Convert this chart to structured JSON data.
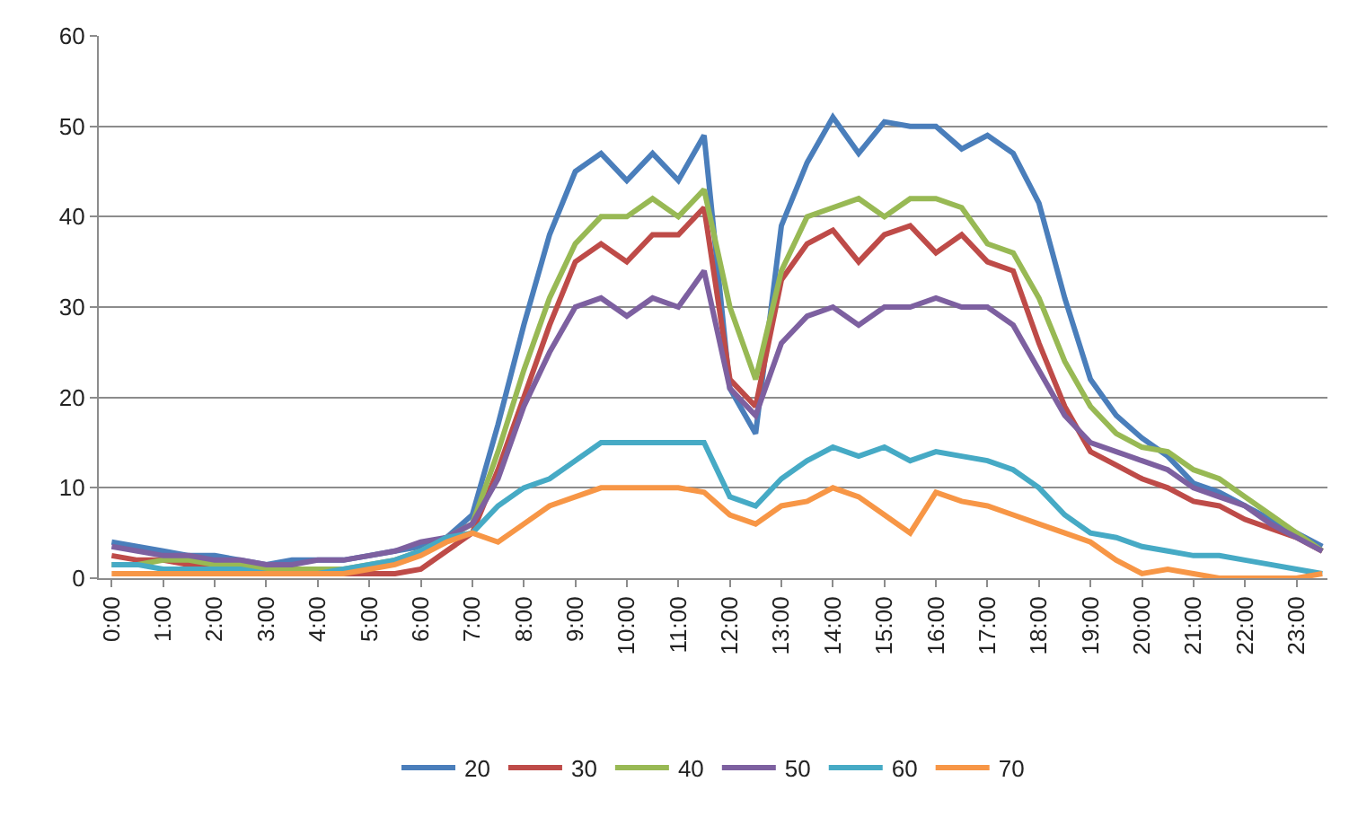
{
  "chart_data": {
    "type": "line",
    "x": [
      0,
      0.5,
      1,
      1.5,
      2,
      2.5,
      3,
      3.5,
      4,
      4.5,
      5,
      5.5,
      6,
      6.5,
      7,
      7.5,
      8,
      8.5,
      9,
      9.5,
      10,
      10.5,
      11,
      11.5,
      12,
      12.5,
      13,
      13.5,
      14,
      14.5,
      15,
      15.5,
      16,
      16.5,
      17,
      17.5,
      18,
      18.5,
      19,
      19.5,
      20,
      20.5,
      21,
      21.5,
      22,
      22.5,
      23,
      23.5
    ],
    "series": [
      {
        "name": "20",
        "color": "#4a7ebb",
        "values": [
          4,
          3.5,
          3,
          2.5,
          2.5,
          2,
          1.5,
          2,
          2,
          2,
          2.5,
          3,
          3.5,
          4.5,
          7,
          17,
          28,
          38,
          45,
          47,
          44,
          47,
          44,
          49,
          21,
          16,
          39,
          46,
          51,
          47,
          50.5,
          50,
          50,
          47.5,
          49,
          47,
          41.5,
          31,
          22,
          18,
          15.5,
          13.5,
          10.5,
          9.5,
          8,
          6.5,
          5,
          3.5
        ]
      },
      {
        "name": "30",
        "color": "#be4b48",
        "values": [
          2.5,
          2,
          2,
          1.5,
          1.5,
          1,
          1,
          1,
          0.5,
          0.5,
          0.5,
          0.5,
          1,
          3,
          5,
          12,
          20,
          28,
          35,
          37,
          35,
          38,
          38,
          41,
          22,
          19,
          33,
          37,
          38.5,
          35,
          38,
          39,
          36,
          38,
          35,
          34,
          26,
          19,
          14,
          12.5,
          11,
          10,
          8.5,
          8,
          6.5,
          5.5,
          4.5,
          3
        ]
      },
      {
        "name": "40",
        "color": "#98b954",
        "values": [
          1.5,
          1.5,
          2,
          2,
          1.5,
          1.5,
          1,
          1,
          1,
          1,
          1.5,
          2,
          3,
          4.5,
          6,
          14,
          23,
          31,
          37,
          40,
          40,
          42,
          40,
          43,
          30,
          22,
          34,
          40,
          41,
          42,
          40,
          42,
          42,
          41,
          37,
          36,
          31,
          24,
          19,
          16,
          14.5,
          14,
          12,
          11,
          9,
          7,
          5,
          3
        ]
      },
      {
        "name": "50",
        "color": "#7d60a0",
        "values": [
          3.5,
          3,
          2.5,
          2.5,
          2,
          2,
          1.5,
          1.5,
          2,
          2,
          2.5,
          3,
          4,
          4.5,
          6,
          11,
          19,
          25,
          30,
          31,
          29,
          31,
          30,
          34,
          21,
          18,
          26,
          29,
          30,
          28,
          30,
          30,
          31,
          30,
          30,
          28,
          23,
          18,
          15,
          14,
          13,
          12,
          10,
          9,
          8,
          6,
          4.5,
          3
        ]
      },
      {
        "name": "60",
        "color": "#46aac5",
        "values": [
          1.5,
          1.5,
          1,
          1,
          1,
          1,
          0.5,
          0.5,
          0.5,
          1,
          1.5,
          2,
          3,
          4.5,
          5,
          8,
          10,
          11,
          13,
          15,
          15,
          15,
          15,
          15,
          9,
          8,
          11,
          13,
          14.5,
          13.5,
          14.5,
          13,
          14,
          13.5,
          13,
          12,
          10,
          7,
          5,
          4.5,
          3.5,
          3,
          2.5,
          2.5,
          2,
          1.5,
          1,
          0.5
        ]
      },
      {
        "name": "70",
        "color": "#f79646",
        "values": [
          0.5,
          0.5,
          0.5,
          0.5,
          0.5,
          0.5,
          0.5,
          0.5,
          0.5,
          0.5,
          1,
          1.5,
          2.5,
          4,
          5,
          4,
          6,
          8,
          9,
          10,
          10,
          10,
          10,
          9.5,
          7,
          6,
          8,
          8.5,
          10,
          9,
          7,
          5,
          9.5,
          8.5,
          8,
          7,
          6,
          5,
          4,
          2,
          0.5,
          1,
          0.5,
          0,
          0,
          0,
          0,
          0.5
        ]
      }
    ],
    "xlim": [
      -0.25,
      23.6
    ],
    "xticks": [
      {
        "value": 0,
        "label": "0:00"
      },
      {
        "value": 1,
        "label": "1:00"
      },
      {
        "value": 2,
        "label": "2:00"
      },
      {
        "value": 3,
        "label": "3:00"
      },
      {
        "value": 4,
        "label": "4:00"
      },
      {
        "value": 5,
        "label": "5:00"
      },
      {
        "value": 6,
        "label": "6:00"
      },
      {
        "value": 7,
        "label": "7:00"
      },
      {
        "value": 8,
        "label": "8:00"
      },
      {
        "value": 9,
        "label": "9:00"
      },
      {
        "value": 10,
        "label": "10:00"
      },
      {
        "value": 11,
        "label": "11:00"
      },
      {
        "value": 12,
        "label": "12:00"
      },
      {
        "value": 13,
        "label": "13:00"
      },
      {
        "value": 14,
        "label": "14:00"
      },
      {
        "value": 15,
        "label": "15:00"
      },
      {
        "value": 16,
        "label": "16:00"
      },
      {
        "value": 17,
        "label": "17:00"
      },
      {
        "value": 18,
        "label": "18:00"
      },
      {
        "value": 19,
        "label": "19:00"
      },
      {
        "value": 20,
        "label": "20:00"
      },
      {
        "value": 21,
        "label": "21:00"
      },
      {
        "value": 22,
        "label": "22:00"
      },
      {
        "value": 23,
        "label": "23:00"
      }
    ],
    "ylim": [
      0,
      60
    ],
    "yticks": [
      0,
      10,
      20,
      30,
      40,
      50,
      60
    ],
    "grid": "y",
    "legend": "bottom",
    "marker": "none",
    "line_style": "solid"
  }
}
